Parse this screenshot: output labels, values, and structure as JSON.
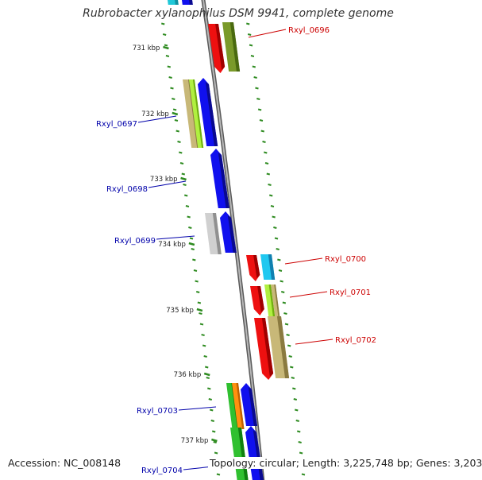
{
  "title": "Rubrobacter xylanophilus DSM 9941, complete genome",
  "accession_text": "Accession: NC_008148",
  "topology_text": "Topology: circular; Length: 3,225,748 bp; Genes: 3,203",
  "colors": {
    "backbone": "#808080",
    "tick": "#2e8b20",
    "forward_label": "#cc0000",
    "reverse_label": "#0000aa"
  },
  "kbp_labels": [
    "731 kbp",
    "732 kbp",
    "733 kbp",
    "734 kbp",
    "735 kbp",
    "736 kbp",
    "737 kbp"
  ],
  "genes": [
    {
      "id": "Rxyl_0696",
      "strand": "forward"
    },
    {
      "id": "Rxyl_0697",
      "strand": "reverse"
    },
    {
      "id": "Rxyl_0698",
      "strand": "reverse"
    },
    {
      "id": "Rxyl_0699",
      "strand": "reverse"
    },
    {
      "id": "Rxyl_0700",
      "strand": "forward"
    },
    {
      "id": "Rxyl_0701",
      "strand": "forward"
    },
    {
      "id": "Rxyl_0702",
      "strand": "forward"
    },
    {
      "id": "Rxyl_0703",
      "strand": "reverse"
    },
    {
      "id": "Rxyl_0704",
      "strand": "reverse"
    }
  ]
}
